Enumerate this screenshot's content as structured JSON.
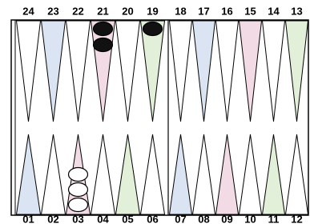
{
  "board": {
    "top_points": [
      "24",
      "23",
      "22",
      "21",
      "20",
      "19",
      "18",
      "17",
      "16",
      "15",
      "14",
      "13"
    ],
    "bottom_points": [
      "01",
      "02",
      "03",
      "04",
      "05",
      "06",
      "07",
      "08",
      "09",
      "10",
      "11",
      "12"
    ],
    "checkers": [
      {
        "point": "21",
        "color": "black",
        "count": 2
      },
      {
        "point": "19",
        "color": "black",
        "count": 1
      },
      {
        "point": "03",
        "color": "white",
        "count": 3
      }
    ]
  }
}
